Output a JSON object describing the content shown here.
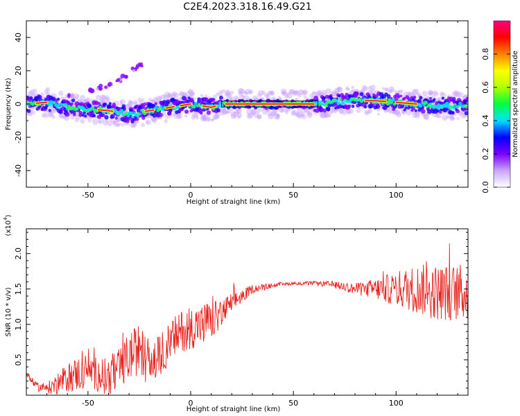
{
  "title": "C2E4.2023.318.16.49.G21",
  "chart_data": [
    {
      "type": "heatmap",
      "xlabel": "Height of straight line (km)",
      "ylabel": "Frequency (Hz)",
      "xlim": [
        -80,
        135
      ],
      "ylim": [
        -50,
        50
      ],
      "xticks": [
        -50,
        0,
        50,
        100
      ],
      "yticks": [
        -40,
        -20,
        0,
        20,
        40
      ],
      "colorbar": {
        "label": "Normalized spectral amplitude",
        "range": [
          0,
          1
        ],
        "ticks": [
          "0.0",
          "0.2",
          "0.4",
          "0.6",
          "0.8"
        ],
        "colors": [
          "#ffffff",
          "#c9a3ff",
          "#7a00ff",
          "#0000ff",
          "#00e0ff",
          "#00ff40",
          "#b0ff00",
          "#ffff00",
          "#ff8000",
          "#ff0000",
          "#ff0080"
        ]
      },
      "ridge": {
        "x": [
          -80,
          -70,
          -60,
          -50,
          -40,
          -35,
          -30,
          -28,
          -25,
          -20,
          -15,
          -10,
          -5,
          0,
          5,
          10,
          15,
          20,
          30,
          40,
          50,
          60,
          70,
          80,
          90,
          100,
          110,
          120,
          135
        ],
        "y": [
          0,
          1,
          -2,
          -3,
          -4,
          -5,
          -6,
          -7,
          -5,
          -4,
          -3,
          -2,
          -1,
          0,
          -1,
          -2,
          0,
          0,
          0,
          0,
          0,
          0,
          1,
          2,
          2,
          1,
          0,
          -1,
          -1
        ]
      },
      "secondary_branch": {
        "x": [
          -58,
          -48,
          -45,
          -40,
          -35,
          -32,
          -27,
          -25
        ],
        "y": [
          5,
          8,
          10,
          11,
          14,
          17,
          21,
          23
        ]
      }
    },
    {
      "type": "line",
      "xlabel": "Height of straight line (km)",
      "ylabel": "SNR (10 * v/v)",
      "y_multiplier": "(x10",
      "y_multiplier_exp": "4",
      "xlim": [
        -80,
        135
      ],
      "ylim": [
        0,
        2.35
      ],
      "xticks": [
        -50,
        0,
        50,
        100
      ],
      "yticks": [
        "0.5",
        "1.0",
        "1.5",
        "2.0"
      ],
      "color": "#e8231e",
      "series": [
        {
          "x": [
            -80,
            -75,
            -70,
            -65,
            -60,
            -55,
            -50,
            -45,
            -40,
            -35,
            -30,
            -25,
            -20,
            -15,
            -10,
            -5,
            0,
            5,
            10,
            15,
            20,
            25,
            30,
            40,
            50,
            60,
            70,
            80,
            90,
            100,
            110,
            120,
            130,
            135
          ],
          "values": [
            0.3,
            0.12,
            0.1,
            0.15,
            0.25,
            0.3,
            0.35,
            0.3,
            0.25,
            0.35,
            0.55,
            0.65,
            0.45,
            0.55,
            0.75,
            0.9,
            0.95,
            1.0,
            1.05,
            1.15,
            1.3,
            1.4,
            1.5,
            1.55,
            1.58,
            1.58,
            1.56,
            1.5,
            1.5,
            1.5,
            1.5,
            1.45,
            1.45,
            1.45
          ],
          "noise": [
            0.05,
            0.06,
            0.08,
            0.15,
            0.2,
            0.25,
            0.25,
            0.25,
            0.3,
            0.3,
            0.35,
            0.35,
            0.35,
            0.3,
            0.3,
            0.3,
            0.3,
            0.3,
            0.28,
            0.2,
            0.15,
            0.1,
            0.06,
            0.03,
            0.02,
            0.03,
            0.05,
            0.08,
            0.15,
            0.25,
            0.35,
            0.4,
            0.4,
            0.4
          ]
        }
      ]
    }
  ]
}
